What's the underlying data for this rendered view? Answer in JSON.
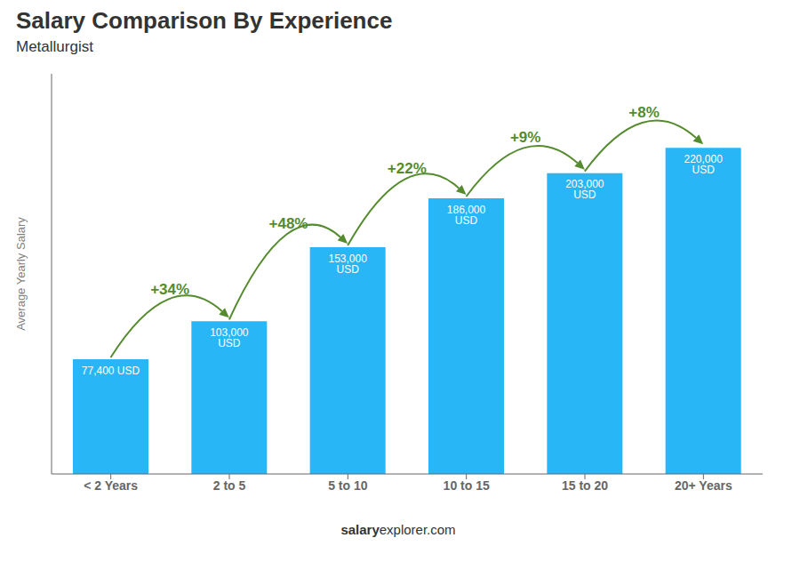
{
  "chart_data": {
    "type": "bar",
    "title": "Salary Comparison By Experience",
    "subtitle": "Metallurgist",
    "ylabel": "Average Yearly Salary",
    "categories": [
      "< 2 Years",
      "2 to 5",
      "5 to 10",
      "10 to 15",
      "15 to 20",
      "20+ Years"
    ],
    "values": [
      77400,
      103000,
      153000,
      186000,
      203000,
      220000
    ],
    "value_labels": [
      "77,400 USD",
      "103,000 USD",
      "153,000 USD",
      "186,000 USD",
      "203,000 USD",
      "220,000 USD"
    ],
    "data_labels": true,
    "color": "#29b6f6",
    "ylim": [
      0,
      270000
    ],
    "tick_labels": "x",
    "annotations": [
      {
        "text": "+34%",
        "from": "< 2 Years",
        "to": "2 to 5"
      },
      {
        "text": "+48%",
        "from": "2 to 5",
        "to": "5 to 10"
      },
      {
        "text": "+22%",
        "from": "5 to 10",
        "to": "10 to 15"
      },
      {
        "text": "+9%",
        "from": "10 to 15",
        "to": "15 to 20"
      },
      {
        "text": "+8%",
        "from": "15 to 20",
        "to": "20+ Years"
      },
      {
        "text": "salary"
      },
      {
        "text": "explorer.com"
      }
    ]
  }
}
